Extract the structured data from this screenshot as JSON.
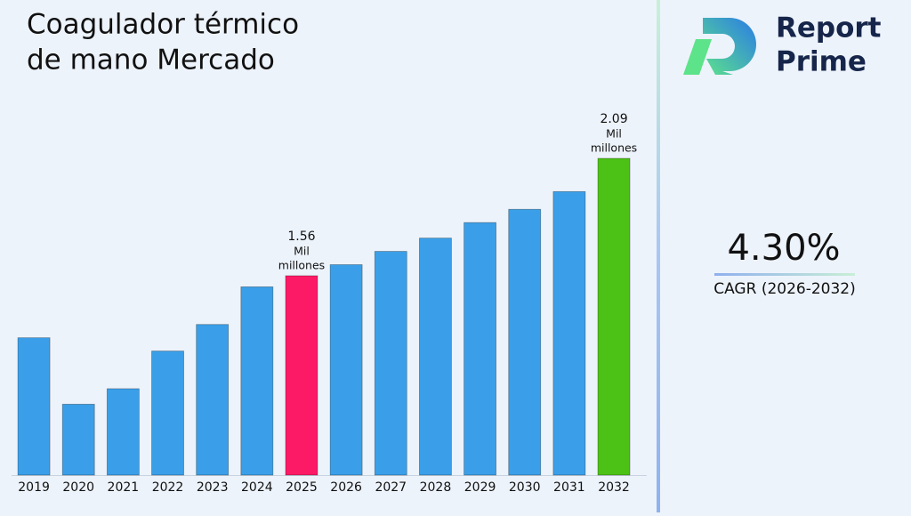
{
  "chart_data": {
    "type": "bar",
    "title_lines": [
      "Coagulador térmico",
      "de mano Mercado"
    ],
    "categories": [
      "2019",
      "2020",
      "2021",
      "2022",
      "2023",
      "2024",
      "2025",
      "2026",
      "2027",
      "2028",
      "2029",
      "2030",
      "2031",
      "2032"
    ],
    "values": [
      1.28,
      0.98,
      1.05,
      1.22,
      1.34,
      1.51,
      1.56,
      1.61,
      1.67,
      1.73,
      1.8,
      1.86,
      1.94,
      2.09
    ],
    "colors": [
      "#3a9fe8",
      "#3a9fe8",
      "#3a9fe8",
      "#3a9fe8",
      "#3a9fe8",
      "#3a9fe8",
      "#fc1a66",
      "#3a9fe8",
      "#3a9fe8",
      "#3a9fe8",
      "#3a9fe8",
      "#3a9fe8",
      "#3a9fe8",
      "#4cc116"
    ],
    "labeled_bars": [
      6,
      13
    ],
    "value_unit_lines": [
      "Mil",
      "millones"
    ],
    "ylim": [
      0.66,
      2.1
    ]
  },
  "side_panel": {
    "cagr": "4.30%",
    "cagr_label": "CAGR (2026-2032)"
  },
  "logo": {
    "line1": "Report",
    "line2": "Prime"
  }
}
